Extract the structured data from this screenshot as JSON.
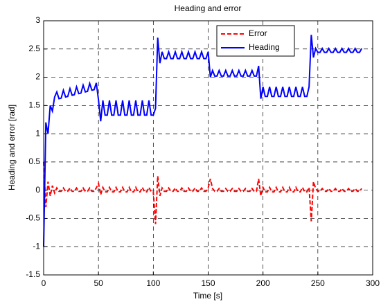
{
  "chart_data": {
    "type": "line",
    "title": "Heading and error",
    "xlabel": "Time [s]",
    "ylabel": "Heading and error [rad]",
    "x": [
      0,
      2,
      4,
      6,
      8,
      10,
      12,
      14,
      16,
      18,
      20,
      22,
      24,
      26,
      28,
      30,
      32,
      34,
      36,
      38,
      40,
      42,
      44,
      46,
      48,
      50,
      52,
      54,
      56,
      58,
      60,
      62,
      64,
      66,
      68,
      70,
      72,
      74,
      76,
      78,
      80,
      82,
      84,
      86,
      88,
      90,
      92,
      94,
      96,
      98,
      100,
      102,
      104,
      106,
      108,
      110,
      112,
      114,
      116,
      118,
      120,
      122,
      124,
      126,
      128,
      130,
      132,
      134,
      136,
      138,
      140,
      142,
      144,
      146,
      148,
      150,
      152,
      154,
      156,
      158,
      160,
      162,
      164,
      166,
      168,
      170,
      172,
      174,
      176,
      178,
      180,
      182,
      184,
      186,
      188,
      190,
      192,
      194,
      196,
      198,
      200,
      202,
      204,
      206,
      208,
      210,
      212,
      214,
      216,
      218,
      220,
      222,
      224,
      226,
      228,
      230,
      232,
      234,
      236,
      238,
      240,
      242,
      244,
      246,
      248,
      250,
      252,
      254,
      256,
      258,
      260,
      262,
      264,
      266,
      268,
      270,
      272,
      274,
      276,
      278,
      280,
      282,
      284,
      286,
      288,
      290
    ],
    "series": [
      {
        "name": "Error",
        "color": "#ff0000",
        "linestyle": "dashed",
        "values": [
          0.5,
          -0.3,
          0.15,
          -0.1,
          0.08,
          -0.05,
          0.04,
          -0.02,
          -0.02,
          0.04,
          -0.02,
          -0.02,
          0.04,
          -0.02,
          -0.02,
          0.04,
          -0.02,
          -0.02,
          0.04,
          -0.02,
          -0.02,
          0.04,
          -0.02,
          -0.02,
          0.04,
          0.12,
          -0.08,
          0.05,
          -0.03,
          -0.03,
          0.05,
          -0.03,
          -0.03,
          0.05,
          -0.03,
          -0.03,
          0.05,
          -0.03,
          -0.03,
          0.05,
          -0.03,
          -0.03,
          0.05,
          -0.03,
          -0.03,
          0.05,
          -0.03,
          -0.03,
          0.05,
          -0.03,
          -0.03,
          -0.6,
          0.25,
          -0.1,
          0.04,
          -0.02,
          -0.02,
          0.04,
          -0.02,
          -0.02,
          0.04,
          -0.02,
          -0.02,
          0.04,
          -0.02,
          -0.02,
          0.04,
          -0.02,
          -0.02,
          0.04,
          -0.02,
          -0.02,
          0.04,
          -0.02,
          -0.02,
          0.04,
          0.2,
          0.03,
          -0.02,
          -0.02,
          0.03,
          -0.02,
          -0.02,
          0.03,
          -0.02,
          -0.02,
          0.03,
          -0.02,
          -0.02,
          0.03,
          -0.02,
          -0.02,
          0.03,
          -0.02,
          -0.02,
          0.03,
          -0.02,
          -0.02,
          0.2,
          -0.1,
          0.05,
          -0.03,
          -0.03,
          0.05,
          -0.03,
          -0.03,
          0.05,
          -0.03,
          -0.03,
          0.05,
          -0.03,
          -0.03,
          0.05,
          -0.03,
          -0.03,
          0.05,
          -0.03,
          -0.03,
          0.05,
          -0.03,
          -0.03,
          0.05,
          -0.55,
          0.15,
          0.03,
          -0.02,
          -0.02,
          0.03,
          -0.02,
          -0.02,
          0.03,
          -0.02,
          -0.02,
          0.03,
          -0.02,
          -0.02,
          0.03,
          -0.02,
          -0.02,
          0.03,
          -0.02,
          -0.02,
          0.03,
          -0.02,
          -0.02,
          0.03
        ]
      },
      {
        "name": "Heading",
        "color": "#0000ff",
        "linestyle": "solid",
        "values": [
          -1.0,
          1.2,
          1.0,
          1.5,
          1.4,
          1.65,
          1.74,
          1.62,
          1.63,
          1.77,
          1.65,
          1.66,
          1.8,
          1.68,
          1.69,
          1.83,
          1.71,
          1.72,
          1.86,
          1.74,
          1.75,
          1.89,
          1.77,
          1.78,
          1.9,
          1.6,
          1.22,
          1.59,
          1.33,
          1.33,
          1.59,
          1.33,
          1.33,
          1.59,
          1.33,
          1.33,
          1.59,
          1.33,
          1.33,
          1.59,
          1.33,
          1.33,
          1.59,
          1.33,
          1.33,
          1.59,
          1.33,
          1.33,
          1.59,
          1.33,
          1.33,
          1.45,
          2.7,
          2.25,
          2.45,
          2.33,
          2.33,
          2.45,
          2.33,
          2.33,
          2.45,
          2.33,
          2.33,
          2.45,
          2.33,
          2.33,
          2.45,
          2.33,
          2.33,
          2.45,
          2.33,
          2.33,
          2.45,
          2.33,
          2.33,
          2.45,
          2.0,
          2.12,
          2.02,
          2.02,
          2.12,
          2.02,
          2.02,
          2.12,
          2.02,
          2.02,
          2.12,
          2.02,
          2.02,
          2.12,
          2.02,
          2.02,
          2.12,
          2.02,
          2.02,
          2.12,
          2.02,
          2.02,
          2.2,
          1.62,
          1.83,
          1.66,
          1.66,
          1.83,
          1.66,
          1.66,
          1.83,
          1.66,
          1.66,
          1.83,
          1.66,
          1.66,
          1.83,
          1.66,
          1.66,
          1.83,
          1.66,
          1.66,
          1.83,
          1.66,
          1.66,
          1.83,
          2.75,
          2.35,
          2.51,
          2.44,
          2.44,
          2.51,
          2.44,
          2.44,
          2.51,
          2.44,
          2.44,
          2.51,
          2.44,
          2.44,
          2.51,
          2.44,
          2.44,
          2.51,
          2.44,
          2.44,
          2.51,
          2.44,
          2.44,
          2.51
        ]
      }
    ],
    "xlim": [
      0,
      300
    ],
    "xticks": [
      0,
      50,
      100,
      150,
      200,
      250,
      300
    ],
    "ylim": [
      -1.5,
      3
    ],
    "yticks": [
      -1.5,
      -1,
      -0.5,
      0,
      0.5,
      1,
      1.5,
      2,
      2.5,
      3
    ],
    "grid": true,
    "legend": "upper right"
  }
}
